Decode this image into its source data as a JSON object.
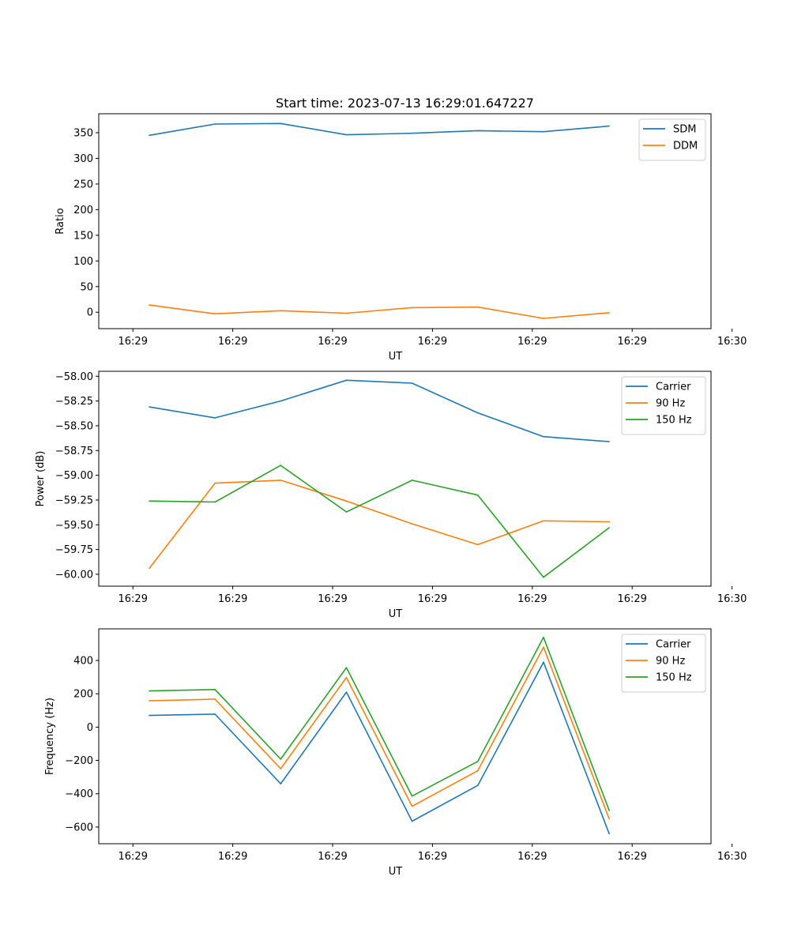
{
  "chart_data": [
    {
      "type": "line",
      "title": "Start time: 2023-07-13 16:29:01.647227",
      "xlabel": "UT",
      "ylabel": "Ratio",
      "xlim": [
        -0.52,
        8.8
      ],
      "x": [
        0.25,
        1.25,
        2.25,
        3.25,
        4.25,
        5.25,
        6.25,
        7.25
      ],
      "xticks": [
        0,
        1.52,
        3.04,
        4.56,
        6.08,
        7.6,
        9.12
      ],
      "xticklabels": [
        "16:29",
        "16:29",
        "16:29",
        "16:29",
        "16:29",
        "16:29",
        "16:30"
      ],
      "ylim": [
        -32,
        387
      ],
      "yticks": [
        0,
        50,
        100,
        150,
        200,
        250,
        300,
        350
      ],
      "yticklabels": [
        "0",
        "50",
        "100",
        "150",
        "200",
        "250",
        "300",
        "350"
      ],
      "legend_position": "top-right",
      "series": [
        {
          "name": "SDM",
          "color": "#1f77b4",
          "values": [
            345,
            367,
            368,
            346,
            349,
            354,
            352,
            363
          ]
        },
        {
          "name": "DDM",
          "color": "#ff7f0e",
          "values": [
            14,
            -3,
            3,
            -2,
            9,
            10,
            -12,
            -1
          ]
        }
      ]
    },
    {
      "type": "line",
      "title": "",
      "xlabel": "UT",
      "ylabel": "Power (dB)",
      "xlim": [
        -0.52,
        8.8
      ],
      "x": [
        0.25,
        1.25,
        2.25,
        3.25,
        4.25,
        5.25,
        6.25,
        7.25
      ],
      "xticks": [
        0,
        1.52,
        3.04,
        4.56,
        6.08,
        7.6,
        9.12
      ],
      "xticklabels": [
        "16:29",
        "16:29",
        "16:29",
        "16:29",
        "16:29",
        "16:29",
        "16:30"
      ],
      "ylim": [
        -60.12,
        -57.95
      ],
      "yticks": [
        -60.0,
        -59.75,
        -59.5,
        -59.25,
        -59.0,
        -58.75,
        -58.5,
        -58.25,
        -58.0
      ],
      "yticklabels": [
        "−60.00",
        "−59.75",
        "−59.50",
        "−59.25",
        "−59.00",
        "−58.75",
        "−58.50",
        "−58.25",
        "−58.00"
      ],
      "legend_position": "top-right",
      "series": [
        {
          "name": "Carrier",
          "color": "#1f77b4",
          "values": [
            -58.31,
            -58.42,
            -58.25,
            -58.04,
            -58.07,
            -58.37,
            -58.61,
            -58.66
          ]
        },
        {
          "name": "90 Hz",
          "color": "#ff7f0e",
          "values": [
            -59.94,
            -59.08,
            -59.05,
            -59.26,
            -59.49,
            -59.7,
            -59.46,
            -59.47
          ]
        },
        {
          "name": "150 Hz",
          "color": "#2ca02c",
          "values": [
            -59.26,
            -59.27,
            -58.9,
            -59.37,
            -59.05,
            -59.2,
            -60.03,
            -59.53
          ]
        }
      ]
    },
    {
      "type": "line",
      "title": "",
      "xlabel": "UT",
      "ylabel": "Frequency (Hz)",
      "xlim": [
        -0.52,
        8.8
      ],
      "x": [
        0.25,
        1.25,
        2.25,
        3.25,
        4.25,
        5.25,
        6.25,
        7.25
      ],
      "xticks": [
        0,
        1.52,
        3.04,
        4.56,
        6.08,
        7.6,
        9.12
      ],
      "xticklabels": [
        "16:29",
        "16:29",
        "16:29",
        "16:29",
        "16:29",
        "16:29",
        "16:30"
      ],
      "ylim": [
        -700,
        590
      ],
      "yticks": [
        -600,
        -400,
        -200,
        0,
        200,
        400
      ],
      "yticklabels": [
        "−600",
        "−400",
        "−200",
        "0",
        "200",
        "400"
      ],
      "legend_position": "top-right",
      "series": [
        {
          "name": "Carrier",
          "color": "#1f77b4",
          "values": [
            70,
            78,
            -340,
            210,
            -565,
            -350,
            390,
            -640
          ]
        },
        {
          "name": "90 Hz",
          "color": "#ff7f0e",
          "values": [
            158,
            168,
            -250,
            298,
            -475,
            -262,
            480,
            -550
          ]
        },
        {
          "name": "150 Hz",
          "color": "#2ca02c",
          "values": [
            217,
            226,
            -192,
            357,
            -414,
            -206,
            539,
            -500
          ]
        }
      ]
    }
  ]
}
